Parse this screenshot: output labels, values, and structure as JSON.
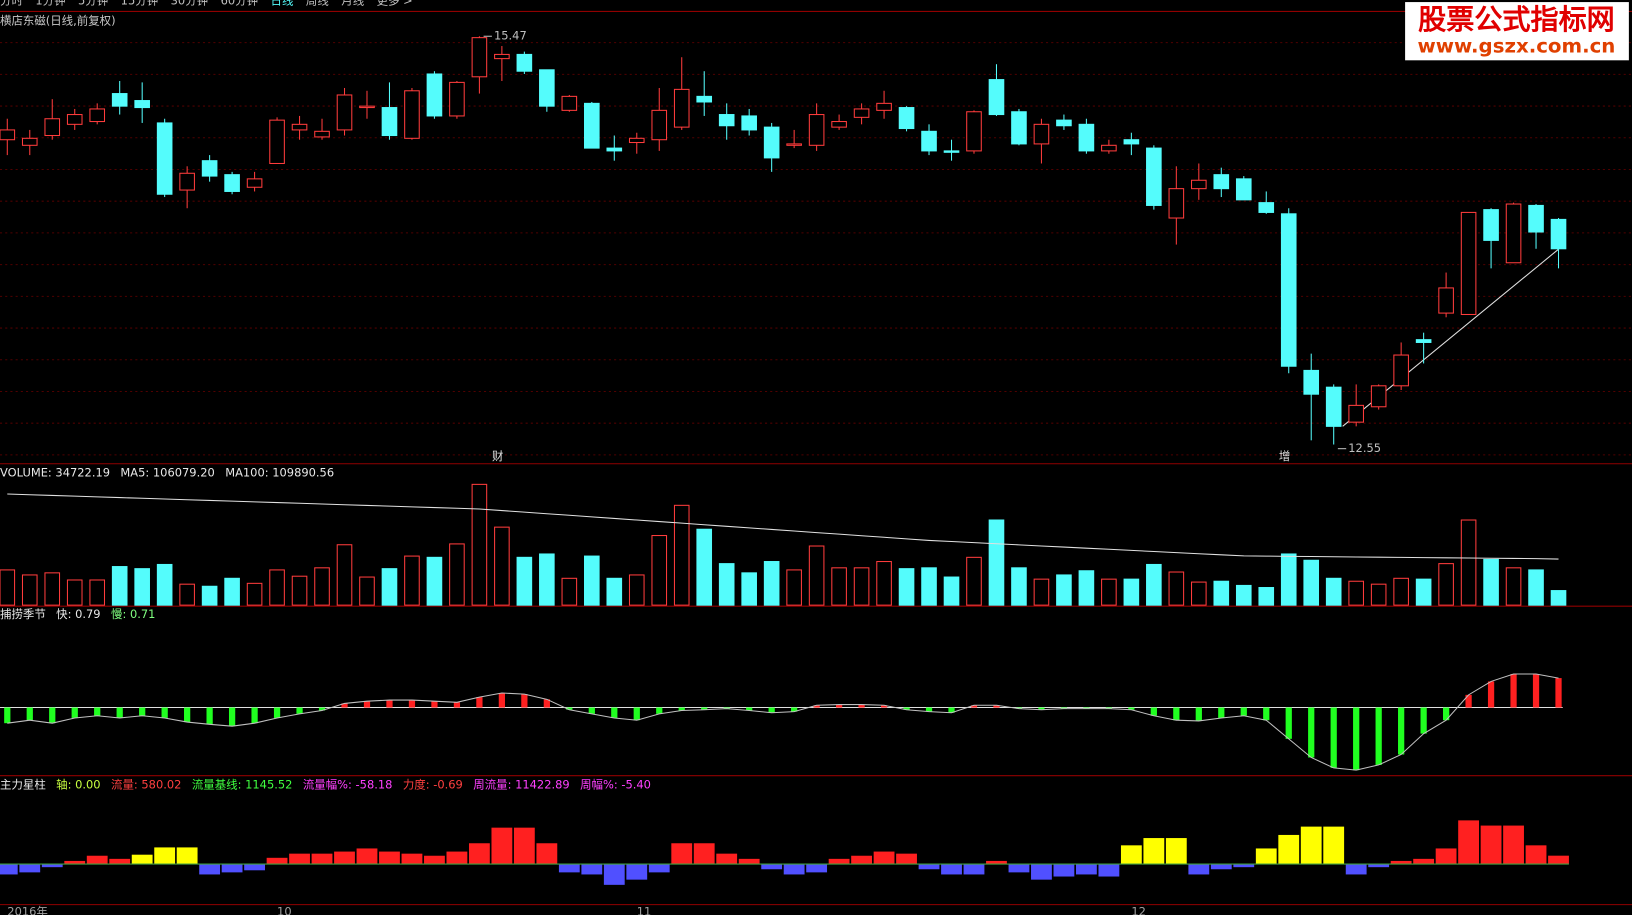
{
  "menu": [
    "分时",
    "1分钟",
    "5分钟",
    "15分钟",
    "30分钟",
    "60分钟",
    "日线",
    "周线",
    "月线",
    "更多 >"
  ],
  "active_menu": 6,
  "watermark": {
    "title": "股票公式指标网",
    "url": "www.gszx.com.cn"
  },
  "chart_data": [
    {
      "type": "candlestick",
      "header": [
        {
          "text": "横店东磁(日线,前复权)",
          "color": "#c8c8c8"
        }
      ],
      "categories": [
        "2016年",
        null,
        null,
        null,
        null,
        null,
        null,
        null,
        null,
        null,
        null,
        null,
        "10",
        null,
        null,
        null,
        null,
        null,
        null,
        null,
        null,
        null,
        null,
        null,
        null,
        null,
        null,
        null,
        "11",
        null,
        null,
        null,
        null,
        null,
        null,
        null,
        null,
        null,
        null,
        null,
        null,
        null,
        null,
        null,
        null,
        null,
        null,
        null,
        null,
        null,
        "12",
        null,
        null,
        null,
        null,
        null,
        null,
        null,
        null,
        null,
        null,
        null,
        null,
        null,
        null,
        null,
        null,
        null,
        null,
        null
      ],
      "open": [
        14.73,
        14.69,
        14.76,
        14.84,
        14.86,
        15.06,
        15.01,
        14.85,
        14.37,
        14.58,
        14.48,
        14.39,
        14.56,
        14.8,
        14.75,
        14.8,
        14.96,
        14.96,
        14.74,
        15.2,
        14.9,
        15.18,
        15.31,
        15.34,
        15.23,
        14.94,
        14.99,
        14.67,
        14.71,
        14.73,
        14.82,
        15.04,
        14.91,
        14.9,
        14.82,
        14.69,
        14.69,
        14.82,
        14.89,
        14.94,
        14.96,
        14.79,
        14.65,
        14.65,
        15.16,
        14.93,
        14.7,
        14.87,
        14.84,
        14.65,
        14.73,
        14.67,
        14.17,
        14.38,
        14.48,
        14.45,
        14.28,
        14.2,
        13.08,
        12.96,
        12.71,
        12.82,
        12.97,
        13.3,
        13.49,
        13.48,
        14.23,
        13.85,
        14.26,
        14.16
      ],
      "high": [
        14.88,
        14.8,
        15.02,
        14.95,
        14.99,
        15.15,
        15.14,
        14.88,
        14.54,
        14.62,
        14.5,
        14.5,
        14.89,
        14.9,
        14.88,
        15.1,
        15.08,
        15.14,
        15.1,
        15.22,
        15.15,
        15.47,
        15.4,
        15.36,
        15.23,
        15.05,
        15.0,
        14.76,
        14.78,
        15.1,
        15.32,
        15.22,
        14.99,
        14.95,
        14.85,
        14.8,
        14.99,
        14.91,
        14.99,
        15.08,
        14.97,
        14.84,
        14.73,
        14.94,
        15.27,
        14.95,
        14.88,
        14.91,
        14.88,
        14.73,
        14.78,
        14.69,
        14.54,
        14.56,
        14.53,
        14.47,
        14.36,
        14.24,
        13.2,
        12.98,
        12.98,
        12.98,
        13.28,
        13.35,
        13.78,
        14.21,
        14.24,
        14.28,
        14.27,
        14.17
      ],
      "low": [
        14.62,
        14.62,
        14.73,
        14.8,
        14.84,
        14.91,
        14.85,
        14.32,
        14.24,
        14.43,
        14.34,
        14.36,
        14.56,
        14.73,
        14.73,
        14.76,
        14.88,
        14.73,
        14.73,
        14.88,
        14.88,
        15.06,
        15.15,
        15.2,
        14.93,
        14.93,
        14.67,
        14.58,
        14.63,
        14.65,
        14.8,
        14.9,
        14.73,
        14.76,
        14.5,
        14.67,
        14.65,
        14.8,
        14.84,
        14.88,
        14.79,
        14.62,
        14.58,
        14.63,
        14.9,
        14.69,
        14.56,
        14.8,
        14.63,
        14.63,
        14.62,
        14.23,
        13.98,
        14.3,
        14.32,
        14.3,
        14.2,
        13.06,
        12.58,
        12.55,
        12.68,
        12.8,
        12.94,
        13.13,
        13.46,
        13.48,
        13.81,
        13.85,
        13.95,
        13.81
      ],
      "close": [
        14.8,
        14.74,
        14.88,
        14.91,
        14.95,
        14.97,
        14.96,
        14.34,
        14.49,
        14.47,
        14.36,
        14.45,
        14.87,
        14.84,
        14.79,
        15.05,
        14.97,
        14.76,
        15.08,
        14.9,
        15.14,
        15.46,
        15.34,
        15.22,
        14.97,
        15.04,
        14.67,
        14.65,
        14.74,
        14.94,
        15.09,
        15.0,
        14.83,
        14.8,
        14.6,
        14.7,
        14.91,
        14.86,
        14.95,
        14.99,
        14.81,
        14.65,
        14.64,
        14.93,
        14.91,
        14.7,
        14.84,
        14.83,
        14.65,
        14.69,
        14.7,
        14.26,
        14.38,
        14.44,
        14.38,
        14.3,
        14.21,
        13.11,
        12.91,
        12.68,
        12.83,
        12.97,
        13.19,
        13.28,
        13.67,
        14.21,
        14.01,
        14.27,
        14.07,
        13.95
      ],
      "events": [
        null,
        null,
        null,
        null,
        null,
        null,
        null,
        null,
        null,
        null,
        null,
        null,
        null,
        null,
        null,
        null,
        null,
        null,
        null,
        null,
        null,
        null,
        "财",
        null,
        null,
        null,
        null,
        null,
        null,
        null,
        null,
        null,
        null,
        null,
        null,
        null,
        null,
        null,
        null,
        null,
        null,
        null,
        null,
        null,
        null,
        null,
        null,
        null,
        null,
        null,
        null,
        null,
        null,
        null,
        null,
        null,
        null,
        "增",
        null,
        null,
        null,
        null,
        null,
        null,
        null,
        null,
        null,
        null,
        null,
        null
      ],
      "max_index": 21,
      "min_index": 59,
      "ylim": [
        12.42,
        15.64
      ],
      "up_color": "#ff3c3c",
      "down_color": "#54fcfc"
    },
    {
      "type": "volume",
      "header": [
        {
          "text": "VOLUME: 34722.19",
          "color": "#e8e8e8"
        },
        {
          "text": "MA5: 106079.20",
          "color": "#e8e8e8"
        },
        {
          "text": "MA100: 109890.56",
          "color": "#e8e8e8"
        }
      ],
      "values": [
        84000,
        72000,
        77000,
        60000,
        60000,
        92000,
        87000,
        97000,
        50000,
        45000,
        64000,
        52000,
        84000,
        69000,
        89000,
        144000,
        67000,
        87000,
        117000,
        114000,
        146000,
        288000,
        186000,
        114000,
        122000,
        64000,
        117000,
        64000,
        72000,
        166000,
        238000,
        181000,
        99000,
        77000,
        104000,
        84000,
        141000,
        89000,
        89000,
        104000,
        87000,
        89000,
        67000,
        114000,
        203000,
        89000,
        62000,
        72000,
        82000,
        62000,
        62000,
        97000,
        79000,
        55000,
        57000,
        47000,
        42000,
        122000,
        107000,
        64000,
        57000,
        50000,
        64000,
        62000,
        99000,
        203000,
        109000,
        89000,
        84000,
        34722.19
      ],
      "ma100": [
        265000,
        263300,
        261600,
        259900,
        258200,
        256500,
        254800,
        253100,
        251400,
        249700,
        248000,
        246300,
        244600,
        242900,
        241200,
        239500,
        237800,
        236100,
        234400,
        232700,
        231000,
        229300,
        225500,
        221800,
        218000,
        214300,
        210500,
        206800,
        203000,
        199300,
        195500,
        191800,
        188000,
        184300,
        180500,
        176800,
        173000,
        169300,
        165500,
        161800,
        158000,
        154300,
        151700,
        149000,
        146400,
        143800,
        141100,
        138500,
        135800,
        133200,
        130600,
        127900,
        125300,
        122600,
        120000,
        117400,
        116900,
        116400,
        115900,
        115400,
        114900,
        114400,
        113900,
        113400,
        112900,
        112400,
        111900,
        111400,
        110900,
        109890.56
      ],
      "ma_color": "#e0e0e0",
      "ylim": [
        0,
        300000
      ]
    },
    {
      "type": "oscillator",
      "header": [
        {
          "text": "捕捞季节",
          "color": "#e8e8e8"
        },
        {
          "text": "快: 0.79",
          "color": "#e8e8e8"
        },
        {
          "text": "慢: 0.71",
          "color": "#80ff80"
        }
      ],
      "values": [
        -0.42,
        -0.34,
        -0.42,
        -0.28,
        -0.22,
        -0.28,
        -0.22,
        -0.28,
        -0.39,
        -0.45,
        -0.5,
        -0.42,
        -0.28,
        -0.17,
        -0.08,
        0.11,
        0.17,
        0.2,
        0.2,
        0.17,
        0.14,
        0.28,
        0.39,
        0.36,
        0.22,
        -0.06,
        -0.17,
        -0.28,
        -0.34,
        -0.17,
        -0.08,
        -0.06,
        -0.03,
        -0.08,
        -0.14,
        -0.11,
        0.06,
        0.08,
        0.08,
        0.06,
        -0.06,
        -0.11,
        -0.14,
        0.06,
        0.06,
        -0.03,
        -0.06,
        -0.03,
        -0.03,
        -0.03,
        -0.06,
        -0.22,
        -0.34,
        -0.36,
        -0.28,
        -0.22,
        -0.34,
        -0.84,
        -1.34,
        -1.62,
        -1.68,
        -1.54,
        -1.26,
        -0.7,
        -0.34,
        0.34,
        0.7,
        0.9,
        0.9,
        0.79
      ],
      "up_color": "#ff2020",
      "down_color": "#20ff20",
      "line_color": "#c0c0c0",
      "ylim": [
        -1.8,
        2.3
      ]
    },
    {
      "type": "flow",
      "header": [
        {
          "text": "主力星柱",
          "color": "#e8e8e8"
        },
        {
          "text": "轴: 0.00",
          "color": "#c8ff40"
        },
        {
          "text": "流量: 580.02",
          "color": "#ff4040"
        },
        {
          "text": "流量基线: 1145.52",
          "color": "#40ff40"
        },
        {
          "text": "流量幅%: -58.18",
          "color": "#ff40ff"
        },
        {
          "text": "力度: -0.69",
          "color": "#ff4040"
        },
        {
          "text": "周流量: 11422.89",
          "color": "#ff40ff"
        },
        {
          "text": "周幅%: -5.40",
          "color": "#ff40ff"
        }
      ],
      "values": [
        -720,
        -576,
        -216,
        216,
        576,
        360,
        648,
        1152,
        1152,
        -720,
        -576,
        -432,
        432,
        720,
        720,
        864,
        1080,
        864,
        720,
        576,
        864,
        1440,
        2520,
        2520,
        1440,
        -576,
        -720,
        -1440,
        -1080,
        -576,
        1440,
        1440,
        720,
        360,
        -360,
        -720,
        -576,
        360,
        576,
        864,
        720,
        -360,
        -720,
        -720,
        216,
        -576,
        -1080,
        -864,
        -720,
        -864,
        1296,
        1800,
        1800,
        -720,
        -360,
        -216,
        1080,
        2016,
        2592,
        2592,
        -720,
        -216,
        216,
        360,
        1080,
        3024,
        2664,
        2664,
        1296,
        580.02
      ],
      "highlight": [
        6,
        7,
        8,
        50,
        51,
        52,
        56,
        57,
        58,
        59
      ],
      "up_color": "#ff2020",
      "down_color": "#5050ff",
      "highlight_color": "#ffff00",
      "ylim": [
        -2808,
        4752
      ]
    }
  ]
}
